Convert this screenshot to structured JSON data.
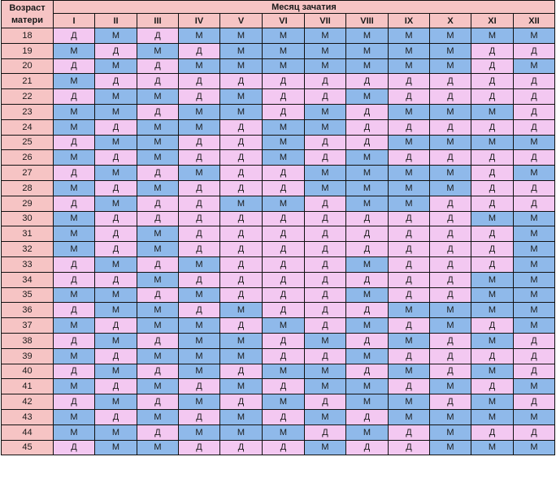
{
  "header": {
    "age_title": "Возраст матери",
    "month_title": "Месяц зачатия",
    "months": [
      "I",
      "II",
      "III",
      "IV",
      "V",
      "VI",
      "VII",
      "VIII",
      "IX",
      "X",
      "XI",
      "XII"
    ]
  },
  "legend_colors": {
    "М": "#8fb9ea",
    "Д": "#f3c8f1",
    "age": "#f6c4c4"
  },
  "rows": [
    {
      "age": "18",
      "cells": [
        "Д",
        "М",
        "Д",
        "М",
        "М",
        "М",
        "М",
        "М",
        "М",
        "М",
        "М",
        "М"
      ]
    },
    {
      "age": "19",
      "cells": [
        "М",
        "Д",
        "М",
        "Д",
        "М",
        "М",
        "М",
        "М",
        "М",
        "М",
        "Д",
        "Д"
      ]
    },
    {
      "age": "20",
      "cells": [
        "Д",
        "М",
        "Д",
        "М",
        "М",
        "М",
        "М",
        "М",
        "М",
        "М",
        "Д",
        "М"
      ]
    },
    {
      "age": "21",
      "cells": [
        "М",
        "Д",
        "Д",
        "Д",
        "Д",
        "Д",
        "Д",
        "Д",
        "Д",
        "Д",
        "Д",
        "Д"
      ]
    },
    {
      "age": "22",
      "cells": [
        "Д",
        "М",
        "М",
        "Д",
        "М",
        "Д",
        "Д",
        "М",
        "Д",
        "Д",
        "Д",
        "Д"
      ]
    },
    {
      "age": "23",
      "cells": [
        "М",
        "М",
        "Д",
        "М",
        "М",
        "Д",
        "М",
        "Д",
        "М",
        "М",
        "М",
        "Д"
      ]
    },
    {
      "age": "24",
      "cells": [
        "М",
        "Д",
        "М",
        "М",
        "Д",
        "М",
        "М",
        "Д",
        "Д",
        "Д",
        "Д",
        "Д"
      ]
    },
    {
      "age": "25",
      "cells": [
        "Д",
        "М",
        "М",
        "Д",
        "Д",
        "М",
        "Д",
        "Д",
        "М",
        "М",
        "М",
        "М"
      ]
    },
    {
      "age": "26",
      "cells": [
        "М",
        "Д",
        "М",
        "Д",
        "Д",
        "М",
        "Д",
        "М",
        "Д",
        "Д",
        "Д",
        "Д"
      ]
    },
    {
      "age": "27",
      "cells": [
        "Д",
        "М",
        "Д",
        "М",
        "Д",
        "Д",
        "М",
        "М",
        "М",
        "М",
        "Д",
        "М"
      ]
    },
    {
      "age": "28",
      "cells": [
        "М",
        "Д",
        "М",
        "Д",
        "Д",
        "Д",
        "М",
        "М",
        "М",
        "М",
        "Д",
        "Д"
      ]
    },
    {
      "age": "29",
      "cells": [
        "Д",
        "М",
        "Д",
        "Д",
        "М",
        "М",
        "Д",
        "М",
        "М",
        "Д",
        "Д",
        "Д"
      ]
    },
    {
      "age": "30",
      "cells": [
        "М",
        "Д",
        "Д",
        "Д",
        "Д",
        "Д",
        "Д",
        "Д",
        "Д",
        "Д",
        "М",
        "М"
      ]
    },
    {
      "age": "31",
      "cells": [
        "М",
        "Д",
        "М",
        "Д",
        "Д",
        "Д",
        "Д",
        "Д",
        "Д",
        "Д",
        "Д",
        "М"
      ]
    },
    {
      "age": "32",
      "cells": [
        "М",
        "Д",
        "М",
        "Д",
        "Д",
        "Д",
        "Д",
        "Д",
        "Д",
        "Д",
        "Д",
        "М"
      ]
    },
    {
      "age": "33",
      "cells": [
        "Д",
        "М",
        "Д",
        "М",
        "Д",
        "Д",
        "Д",
        "М",
        "Д",
        "Д",
        "Д",
        "М"
      ]
    },
    {
      "age": "34",
      "cells": [
        "Д",
        "Д",
        "М",
        "Д",
        "Д",
        "Д",
        "Д",
        "Д",
        "Д",
        "Д",
        "М",
        "М"
      ]
    },
    {
      "age": "35",
      "cells": [
        "М",
        "М",
        "Д",
        "М",
        "Д",
        "Д",
        "Д",
        "М",
        "Д",
        "Д",
        "М",
        "М"
      ]
    },
    {
      "age": "36",
      "cells": [
        "Д",
        "М",
        "М",
        "Д",
        "М",
        "Д",
        "Д",
        "Д",
        "М",
        "М",
        "М",
        "М"
      ]
    },
    {
      "age": "37",
      "cells": [
        "М",
        "Д",
        "М",
        "М",
        "Д",
        "М",
        "Д",
        "М",
        "Д",
        "М",
        "Д",
        "М"
      ]
    },
    {
      "age": "38",
      "cells": [
        "Д",
        "М",
        "Д",
        "М",
        "М",
        "Д",
        "М",
        "Д",
        "М",
        "Д",
        "М",
        "Д"
      ]
    },
    {
      "age": "39",
      "cells": [
        "М",
        "Д",
        "М",
        "М",
        "М",
        "Д",
        "Д",
        "М",
        "Д",
        "Д",
        "Д",
        "Д"
      ]
    },
    {
      "age": "40",
      "cells": [
        "Д",
        "М",
        "Д",
        "М",
        "Д",
        "М",
        "М",
        "Д",
        "М",
        "Д",
        "М",
        "Д"
      ]
    },
    {
      "age": "41",
      "cells": [
        "М",
        "Д",
        "М",
        "Д",
        "М",
        "Д",
        "М",
        "М",
        "Д",
        "М",
        "Д",
        "М"
      ]
    },
    {
      "age": "42",
      "cells": [
        "Д",
        "М",
        "Д",
        "М",
        "Д",
        "М",
        "Д",
        "М",
        "М",
        "Д",
        "М",
        "Д"
      ]
    },
    {
      "age": "43",
      "cells": [
        "М",
        "Д",
        "М",
        "Д",
        "М",
        "Д",
        "М",
        "Д",
        "М",
        "М",
        "М",
        "М"
      ]
    },
    {
      "age": "44",
      "cells": [
        "М",
        "М",
        "Д",
        "М",
        "М",
        "М",
        "Д",
        "М",
        "Д",
        "М",
        "Д",
        "Д"
      ]
    },
    {
      "age": "45",
      "cells": [
        "Д",
        "М",
        "М",
        "Д",
        "Д",
        "Д",
        "М",
        "Д",
        "Д",
        "М",
        "М",
        "М"
      ]
    }
  ]
}
